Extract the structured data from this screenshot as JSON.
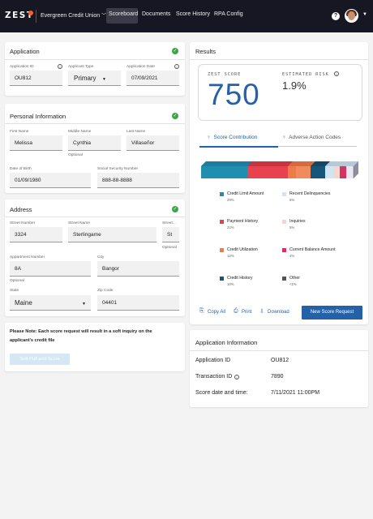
{
  "nav": {
    "logo": "ZEST",
    "org": "Evergreen Credit Union",
    "items": [
      "Scoreboard",
      "Documents",
      "Score History",
      "RPA Config"
    ],
    "help": "?"
  },
  "application": {
    "title": "Application",
    "id_label": "Application ID",
    "id_value": "OU812",
    "type_label": "Applicant Type",
    "type_value": "Primary",
    "date_label": "Application Date",
    "date_value": "07/09/2021"
  },
  "personal": {
    "title": "Personal Information",
    "first_label": "First Name",
    "first_value": "Melissa",
    "middle_label": "Middle Name",
    "middle_value": "Cynthia",
    "middle_note": "Optional",
    "last_label": "Last Name",
    "last_value": "Villaseñor",
    "dob_label": "Date of Birth",
    "dob_value": "01/09/1980",
    "ssn_label": "Social Security Number",
    "ssn_value": "888-88-8888"
  },
  "address": {
    "title": "Address",
    "street_num_label": "Street Number",
    "street_num_value": "3324",
    "street_name_label": "Street Name",
    "street_name_value": "Sterlingame",
    "street_type_label": "Street...",
    "street_type_value": "St",
    "street_type_note": "Optional",
    "apt_label": "Appartment Number",
    "apt_value": "8A",
    "apt_note": "Optional",
    "city_label": "City",
    "city_value": "Bangor",
    "state_label": "State",
    "state_value": "Maine",
    "zip_label": "Zip Code",
    "zip_value": "04401"
  },
  "notice": {
    "line1": "Please Note: Each score request will result in a soft inquiry on the",
    "line2": "applicant's credit file",
    "button": "Soft Pull and Score"
  },
  "results": {
    "title": "Results",
    "score_label": "ZEST SCORE",
    "score_value": "750",
    "risk_label": "ESTIMATED RISK",
    "risk_value": "1.9%",
    "tab1": "Score Contribution",
    "tab2": "Adverse Action Codes",
    "legend": [
      {
        "name": "Credit Limit Amount",
        "pct": "29%",
        "color": "#1f8fb0"
      },
      {
        "name": "Recent Delinquencies",
        "pct": "5%",
        "color": "#cfe6f2"
      },
      {
        "name": "Payment History",
        "pct": "22%",
        "color": "#e8424e"
      },
      {
        "name": "Inquiries",
        "pct": "5%",
        "color": "#f6d4d0"
      },
      {
        "name": "Credit Utilization",
        "pct": "12%",
        "color": "#ee7b4a"
      },
      {
        "name": "Current Balance Amount",
        "pct": "4%",
        "color": "#d43464"
      },
      {
        "name": "Credit History",
        "pct": "10%",
        "color": "#16567a"
      },
      {
        "name": "Other",
        "pct": "<1%",
        "color": "#555555"
      }
    ],
    "copy": "Copy All",
    "print": "Print",
    "download": "Download",
    "new_request": "New Score Request"
  },
  "app_info": {
    "title": "Application Information",
    "rows": [
      {
        "k": "Application ID",
        "v": "OU812"
      },
      {
        "k": "Transaction ID",
        "v": "7890"
      },
      {
        "k": "Score date and time:",
        "v": "7/11/2021 11:00PM"
      }
    ]
  }
}
